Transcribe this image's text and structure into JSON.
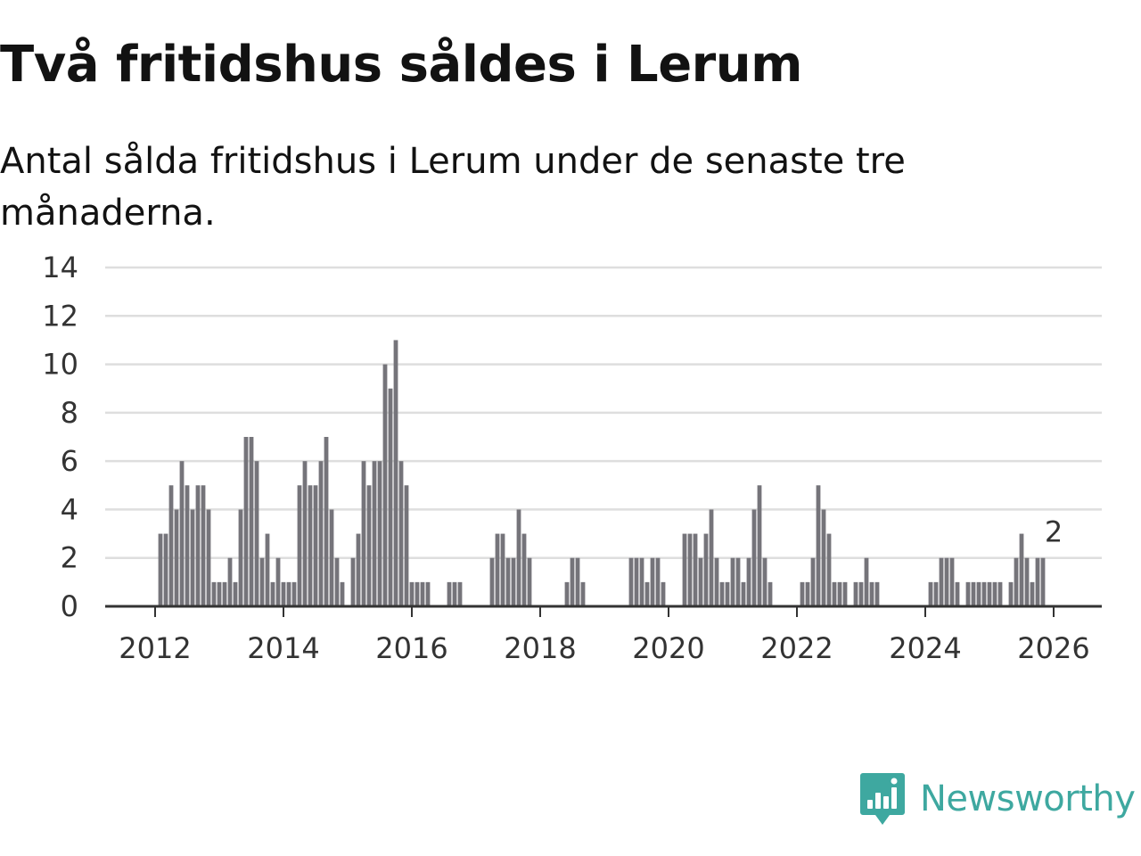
{
  "header": {
    "title": "Två fritidshus såldes i Lerum",
    "subtitle": "Antal sålda fritidshus i Lerum under de senaste tre månaderna."
  },
  "brand": {
    "name": "Newsworthy",
    "icon": "newsworthy-logo-icon",
    "color": "#3ea8a0"
  },
  "colors": {
    "bar": "#75747a",
    "highlight": "#2aa198",
    "grid": "#dedede",
    "axis": "#333333"
  },
  "chart_data": {
    "type": "bar",
    "title": "Två fritidshus såldes i Lerum",
    "subtitle": "Antal sålda fritidshus i Lerum under de senaste tre månaderna.",
    "xlabel": "",
    "ylabel": "",
    "ylim": [
      0,
      14
    ],
    "yticks": [
      0,
      2,
      4,
      6,
      8,
      10,
      12,
      14
    ],
    "xticks": [
      "2012",
      "2014",
      "2016",
      "2018",
      "2020",
      "2022",
      "2024",
      "2026"
    ],
    "xrange": [
      "2011-03",
      "2026-09"
    ],
    "grid": true,
    "legend": "none",
    "series": [
      {
        "name": "Sålda fritidshus",
        "start_month": "2011-03",
        "values": [
          0,
          0,
          0,
          0,
          0,
          0,
          0,
          0,
          0,
          0,
          0,
          3,
          3,
          5,
          4,
          6,
          5,
          4,
          5,
          5,
          4,
          1,
          1,
          1,
          2,
          1,
          4,
          7,
          7,
          6,
          2,
          3,
          1,
          2,
          1,
          1,
          1,
          5,
          6,
          5,
          5,
          6,
          7,
          4,
          2,
          1,
          0,
          2,
          3,
          6,
          5,
          6,
          6,
          10,
          9,
          11,
          6,
          5,
          1,
          1,
          1,
          1,
          0,
          0,
          0,
          1,
          1,
          1,
          0,
          0,
          0,
          0,
          0,
          2,
          3,
          3,
          2,
          2,
          4,
          3,
          2,
          0,
          0,
          0,
          0,
          0,
          0,
          1,
          2,
          2,
          1,
          0,
          0,
          0,
          0,
          0,
          0,
          0,
          0,
          2,
          2,
          2,
          1,
          2,
          2,
          1,
          0,
          0,
          0,
          3,
          3,
          3,
          2,
          3,
          4,
          2,
          1,
          1,
          2,
          2,
          1,
          2,
          4,
          5,
          2,
          1,
          0,
          0,
          0,
          0,
          0,
          1,
          1,
          2,
          5,
          4,
          3,
          1,
          1,
          1,
          0,
          1,
          1,
          2,
          1,
          1,
          0,
          0,
          0,
          0,
          0,
          0,
          0,
          0,
          0,
          1,
          1,
          2,
          2,
          2,
          1,
          0,
          1,
          1,
          1,
          1,
          1,
          1,
          1,
          0,
          1,
          2,
          3,
          2,
          1,
          2,
          2
        ]
      }
    ],
    "highlight": {
      "month": "2026-01",
      "value": 2,
      "label": "2"
    }
  }
}
